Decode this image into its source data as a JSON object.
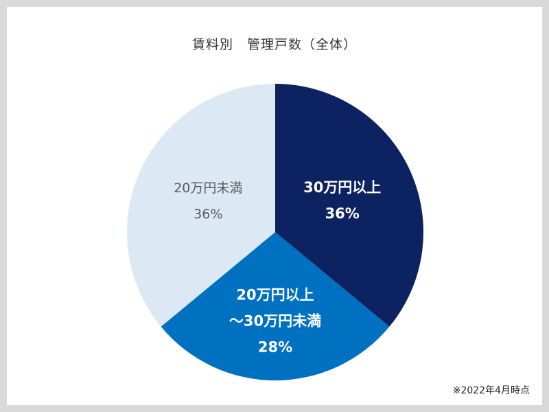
{
  "chart_data": {
    "type": "pie",
    "title": "賃料別　管理戸数（全体）",
    "slices": [
      {
        "label": [
          "30万円以上"
        ],
        "value": 36,
        "value_label": "36%",
        "color": "#0d2260",
        "text_color": "#ffffff",
        "bold": true
      },
      {
        "label": [
          "20万円以上",
          "～30万円未満"
        ],
        "value": 28,
        "value_label": "28%",
        "color": "#0070c0",
        "text_color": "#ffffff",
        "bold": true
      },
      {
        "label": [
          "20万円未満"
        ],
        "value": 36,
        "value_label": "36%",
        "color": "#dce9f5",
        "text_color": "#595959",
        "bold": false
      }
    ],
    "start_angle": "12 o'clock",
    "direction": "clockwise",
    "legend": "none"
  },
  "note": "※2022年4月時点"
}
